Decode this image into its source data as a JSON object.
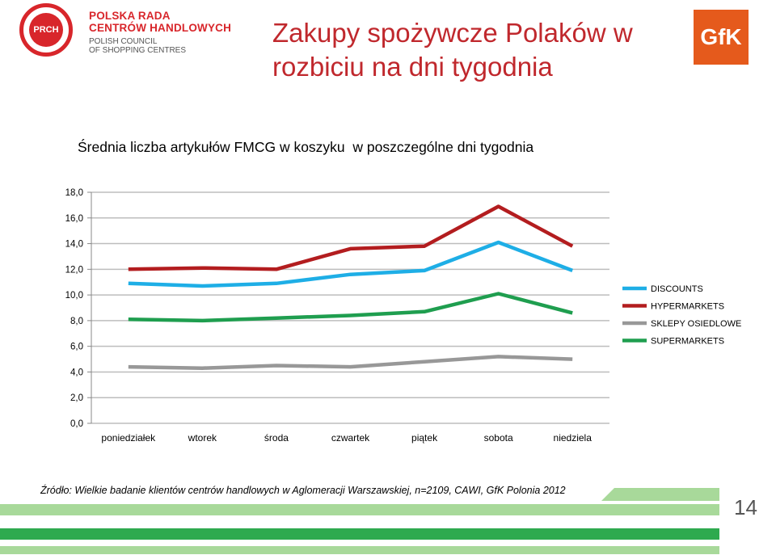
{
  "header": {
    "title": "Zakupy spożywcze Polaków w rozbiciu na dni tygodnia",
    "logo_left": {
      "short": "PRCH",
      "line1": "POLSKA RADA",
      "line2": "CENTRÓW HANDLOWYCH",
      "line3": "POLISH COUNCIL",
      "line4": "OF SHOPPING CENTRES"
    },
    "logo_right": "GfK"
  },
  "footer": {
    "source": "Źródło: Wielkie badanie klientów centrów handlowych w Aglomeracji Warszawskiej, n=2109, CAWI, GfK Polonia 2012",
    "page_number": "14"
  },
  "colors": {
    "title": "#c0282d",
    "footer_bar_light": "#a8d99a",
    "footer_bar_dark": "#2eaa4f"
  },
  "chart_data": {
    "type": "line",
    "title": "Średnia liczba artykułów FMCG w koszyku  w poszczególne dni tygodnia",
    "categories": [
      "poniedziałek",
      "wtorek",
      "środa",
      "czwartek",
      "piątek",
      "sobota",
      "niedziela"
    ],
    "ylim": [
      0,
      18
    ],
    "yticks": [
      "0,0",
      "2,0",
      "4,0",
      "6,0",
      "8,0",
      "10,0",
      "12,0",
      "14,0",
      "16,0",
      "18,0"
    ],
    "grid": true,
    "legend": "right",
    "series": [
      {
        "name": "DISCOUNTS",
        "color": "#1eaee6",
        "values": [
          10.9,
          10.7,
          10.9,
          11.6,
          11.9,
          14.1,
          11.9
        ]
      },
      {
        "name": "HYPERMARKETS",
        "color": "#b31d1f",
        "values": [
          12.0,
          12.1,
          12.0,
          13.6,
          13.8,
          16.9,
          13.8
        ]
      },
      {
        "name": "SKLEPY OSIEDLOWE",
        "color": "#989898",
        "values": [
          4.4,
          4.3,
          4.5,
          4.4,
          4.8,
          5.2,
          5.0
        ]
      },
      {
        "name": "SUPERMARKETS",
        "color": "#1f9e4f",
        "values": [
          8.1,
          8.0,
          8.2,
          8.4,
          8.7,
          10.1,
          8.6
        ]
      }
    ]
  }
}
